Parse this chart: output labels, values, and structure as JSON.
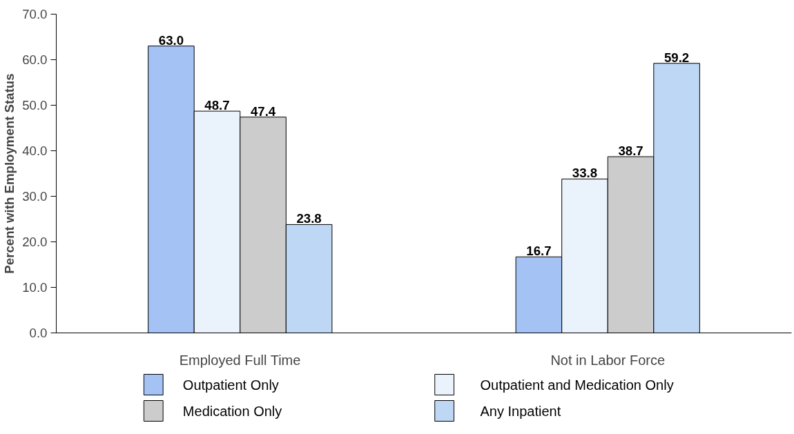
{
  "chart_data": {
    "type": "bar",
    "ylabel": "Percent with Employment Status",
    "categories": [
      "Employed Full Time",
      "Not in Labor Force"
    ],
    "series": [
      {
        "name": "Outpatient Only",
        "color": "#a4c2f4",
        "values": [
          63.0,
          16.7
        ],
        "value_labels": [
          "63.0",
          "16.7"
        ]
      },
      {
        "name": "Outpatient and Medication Only",
        "color": "#eaf2fb",
        "values": [
          48.7,
          33.8
        ],
        "value_labels": [
          "48.7",
          "33.8"
        ]
      },
      {
        "name": "Medication Only",
        "color": "#cccccc",
        "values": [
          47.4,
          38.7
        ],
        "value_labels": [
          "47.4",
          "38.7"
        ]
      },
      {
        "name": "Any Inpatient",
        "color": "#bdd7f5",
        "values": [
          23.8,
          59.2
        ],
        "value_labels": [
          "23.8",
          "59.2"
        ]
      }
    ],
    "ylim": [
      0,
      70
    ],
    "yticks": [
      {
        "value": 0,
        "label": "0.0"
      },
      {
        "value": 10,
        "label": "10.0"
      },
      {
        "value": 20,
        "label": "20.0"
      },
      {
        "value": 30,
        "label": "30.0"
      },
      {
        "value": 40,
        "label": "40.0"
      },
      {
        "value": 50,
        "label": "50.0"
      },
      {
        "value": 60,
        "label": "60.0"
      },
      {
        "value": 70,
        "label": "70.0"
      }
    ],
    "grid": false,
    "legend": "bottom"
  }
}
